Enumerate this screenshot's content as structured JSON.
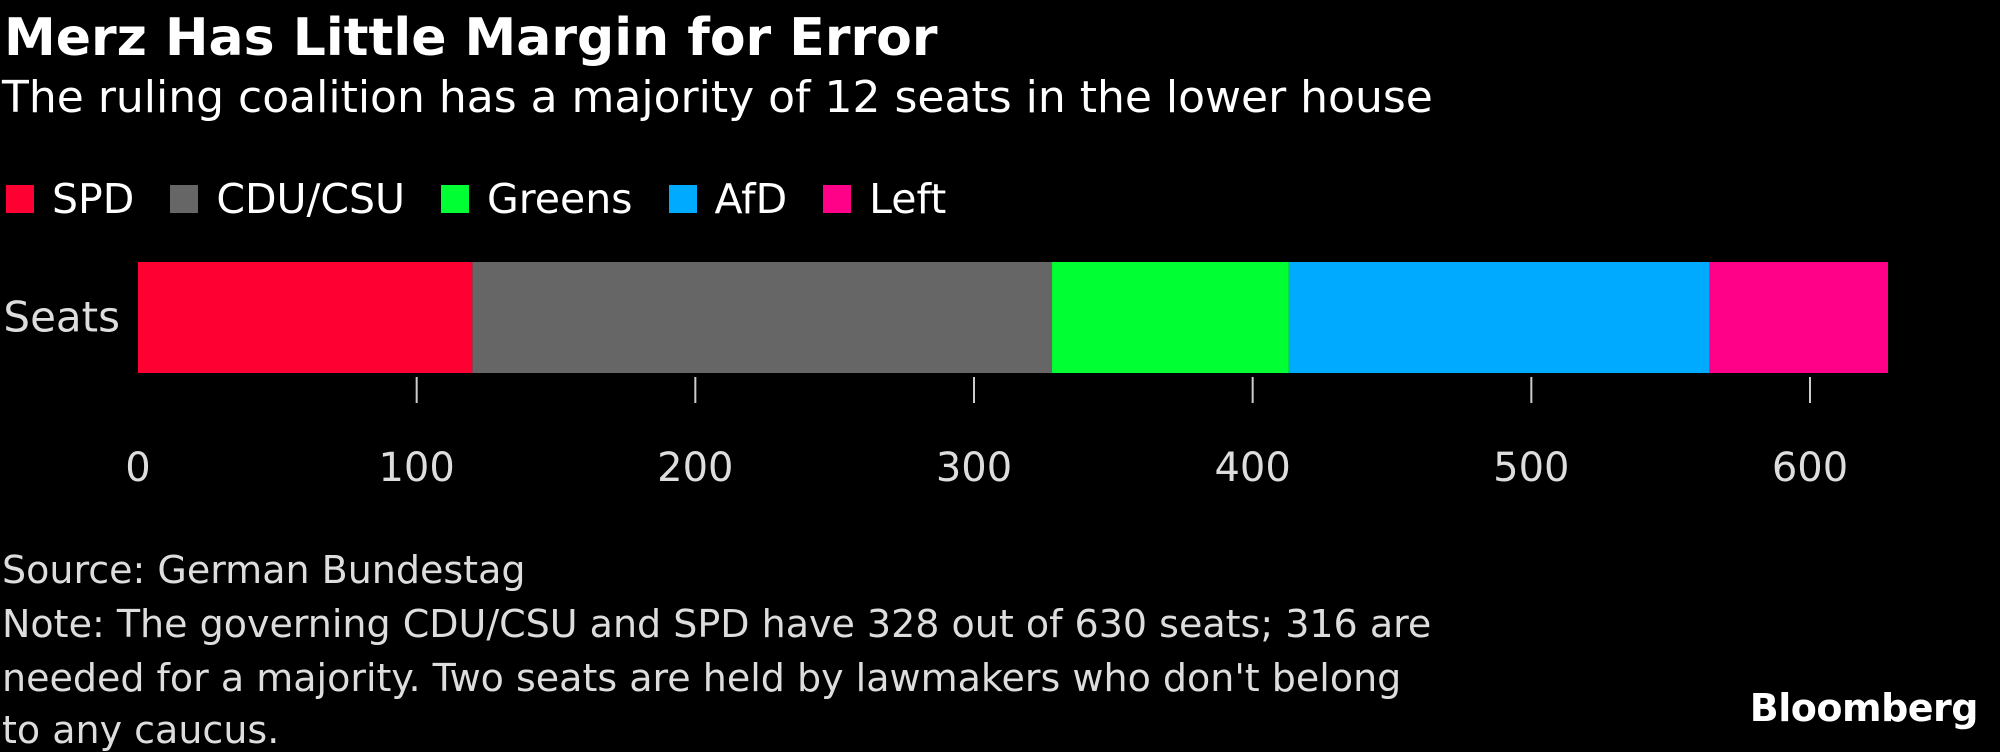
{
  "title": "Merz Has Little Margin for Error",
  "subtitle": "The ruling coalition has a majority of 12 seats in the lower house",
  "chart_data": {
    "type": "bar",
    "orientation": "horizontal-stacked",
    "categories": [
      "Seats"
    ],
    "series": [
      {
        "name": "SPD",
        "values": [
          120
        ],
        "color": "#ff0033"
      },
      {
        "name": "CDU/CSU",
        "values": [
          208
        ],
        "color": "#666666"
      },
      {
        "name": "Greens",
        "values": [
          85
        ],
        "color": "#00ff33"
      },
      {
        "name": "AfD",
        "values": [
          151
        ],
        "color": "#00aaff"
      },
      {
        "name": "Left",
        "values": [
          64
        ],
        "color": "#ff0088"
      }
    ],
    "xlim": [
      0,
      630
    ],
    "xticks": [
      0,
      100,
      200,
      300,
      400,
      500,
      600
    ],
    "legend_position": "top-left",
    "grid": false
  },
  "footer": {
    "source": "Source: German Bundestag",
    "note_lines": [
      "Note: The governing CDU/CSU and SPD have 328 out of 630 seats; 316 are",
      "needed for a majority. Two seats are held by lawmakers who don't belong",
      "to any caucus."
    ],
    "logo": "Bloomberg"
  }
}
